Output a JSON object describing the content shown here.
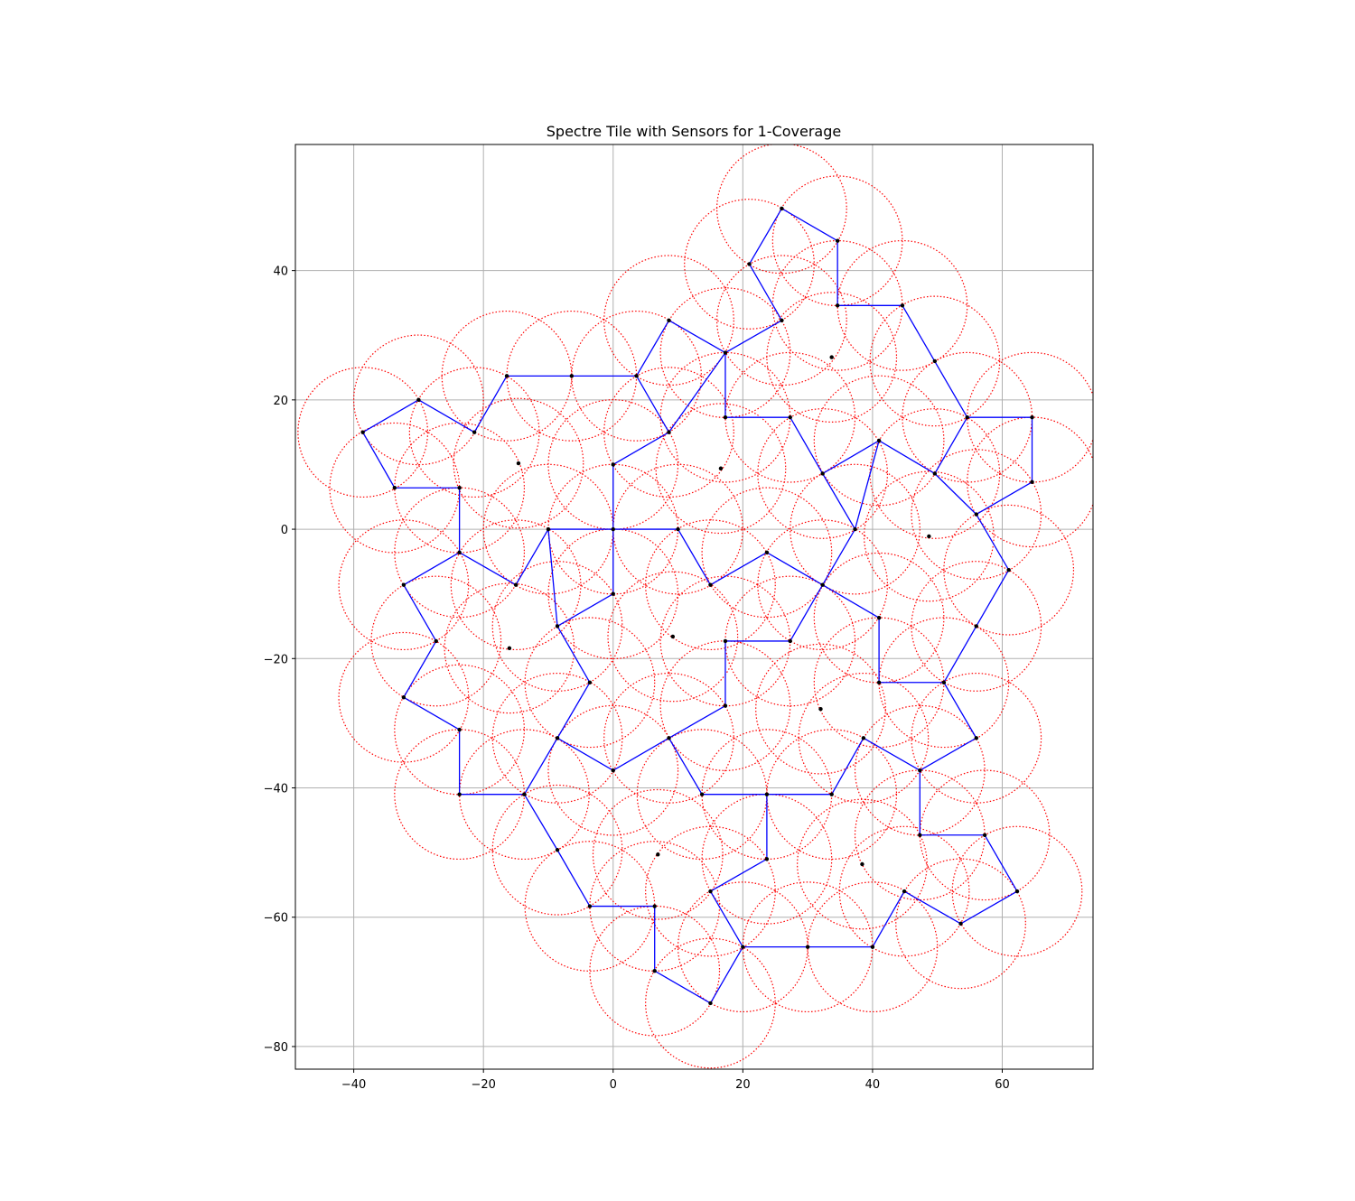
{
  "chart_data": {
    "type": "scatter",
    "title": "Spectre Tile with Sensors for 1-Coverage",
    "xlabel": "",
    "ylabel": "",
    "xlim": [
      -49,
      74
    ],
    "ylim": [
      -83.5,
      59.5
    ],
    "xticks": [
      -40,
      -20,
      0,
      20,
      40,
      60
    ],
    "yticks": [
      -80,
      -60,
      -40,
      -20,
      0,
      20,
      40
    ],
    "xtick_labels": [
      "−40",
      "−20",
      "0",
      "20",
      "40",
      "60"
    ],
    "ytick_labels": [
      "−80",
      "−60",
      "−40",
      "−20",
      "0",
      "20",
      "40"
    ],
    "grid": true,
    "sensor_radius": 10,
    "colors": {
      "tile_edge": "#0000ff",
      "coverage_circle": "#ff0000",
      "sensor": "#000000",
      "grid": "#b0b0b0"
    },
    "tile_edges": [
      [
        [
          -38.6,
          15.0
        ],
        [
          -30.0,
          20.0
        ]
      ],
      [
        [
          -30.0,
          20.0
        ],
        [
          -21.4,
          15.0
        ]
      ],
      [
        [
          -21.4,
          15.0
        ],
        [
          -16.4,
          23.7
        ]
      ],
      [
        [
          -16.4,
          23.7
        ],
        [
          3.6,
          23.7
        ]
      ],
      [
        [
          3.6,
          23.7
        ],
        [
          8.6,
          15.0
        ]
      ],
      [
        [
          8.6,
          15.0
        ],
        [
          0.0,
          10.0
        ]
      ],
      [
        [
          0.0,
          10.0
        ],
        [
          0.0,
          0.0
        ]
      ],
      [
        [
          0.0,
          0.0
        ],
        [
          -10.0,
          0.0
        ]
      ],
      [
        [
          -10.0,
          0.0
        ],
        [
          -15.0,
          -8.6
        ]
      ],
      [
        [
          -15.0,
          -8.6
        ],
        [
          -23.7,
          -3.6
        ]
      ],
      [
        [
          -23.7,
          -3.6
        ],
        [
          -23.7,
          6.4
        ]
      ],
      [
        [
          -23.7,
          6.4
        ],
        [
          -33.7,
          6.4
        ]
      ],
      [
        [
          -33.7,
          6.4
        ],
        [
          -38.6,
          15.0
        ]
      ],
      [
        [
          3.6,
          23.7
        ],
        [
          8.6,
          32.3
        ]
      ],
      [
        [
          8.6,
          32.3
        ],
        [
          17.3,
          27.3
        ]
      ],
      [
        [
          17.3,
          27.3
        ],
        [
          26.0,
          32.3
        ]
      ],
      [
        [
          26.0,
          32.3
        ],
        [
          21.0,
          41.0
        ]
      ],
      [
        [
          21.0,
          41.0
        ],
        [
          26.0,
          49.6
        ]
      ],
      [
        [
          26.0,
          49.6
        ],
        [
          34.6,
          44.6
        ]
      ],
      [
        [
          34.6,
          44.6
        ],
        [
          34.6,
          34.6
        ]
      ],
      [
        [
          34.6,
          34.6
        ],
        [
          44.6,
          34.6
        ]
      ],
      [
        [
          44.6,
          34.6
        ],
        [
          54.6,
          17.3
        ]
      ],
      [
        [
          54.6,
          17.3
        ],
        [
          49.6,
          8.6
        ]
      ],
      [
        [
          49.6,
          8.6
        ],
        [
          41.0,
          13.7
        ]
      ],
      [
        [
          41.0,
          13.7
        ],
        [
          32.3,
          8.6
        ]
      ],
      [
        [
          32.3,
          8.6
        ],
        [
          27.3,
          17.3
        ]
      ],
      [
        [
          27.3,
          17.3
        ],
        [
          17.3,
          17.3
        ]
      ],
      [
        [
          17.3,
          17.3
        ],
        [
          17.3,
          27.3
        ]
      ],
      [
        [
          8.6,
          15.0
        ],
        [
          17.3,
          27.3
        ]
      ],
      [
        [
          54.6,
          17.3
        ],
        [
          64.6,
          17.3
        ]
      ],
      [
        [
          64.6,
          17.3
        ],
        [
          64.6,
          7.3
        ]
      ],
      [
        [
          64.6,
          7.3
        ],
        [
          56.0,
          2.3
        ]
      ],
      [
        [
          56.0,
          2.3
        ],
        [
          61.0,
          -6.3
        ]
      ],
      [
        [
          61.0,
          -6.3
        ],
        [
          56.0,
          -15.0
        ]
      ],
      [
        [
          56.0,
          -15.0
        ],
        [
          51.0,
          -23.7
        ]
      ],
      [
        [
          51.0,
          -23.7
        ],
        [
          41.0,
          -23.7
        ]
      ],
      [
        [
          41.0,
          -23.7
        ],
        [
          41.0,
          -13.7
        ]
      ],
      [
        [
          41.0,
          -13.7
        ],
        [
          32.3,
          -8.6
        ]
      ],
      [
        [
          32.3,
          -8.6
        ],
        [
          37.3,
          0.0
        ]
      ],
      [
        [
          37.3,
          0.0
        ],
        [
          41.0,
          13.7
        ]
      ],
      [
        [
          56.0,
          2.3
        ],
        [
          49.6,
          8.6
        ]
      ],
      [
        [
          0.0,
          0.0
        ],
        [
          10.0,
          0.0
        ]
      ],
      [
        [
          10.0,
          0.0
        ],
        [
          15.0,
          -8.6
        ]
      ],
      [
        [
          15.0,
          -8.6
        ],
        [
          23.7,
          -3.6
        ]
      ],
      [
        [
          23.7,
          -3.6
        ],
        [
          32.3,
          -8.6
        ]
      ],
      [
        [
          37.3,
          0.0
        ],
        [
          32.3,
          8.6
        ]
      ],
      [
        [
          32.3,
          -8.6
        ],
        [
          27.3,
          -17.3
        ]
      ],
      [
        [
          27.3,
          -17.3
        ],
        [
          17.3,
          -17.3
        ]
      ],
      [
        [
          17.3,
          -17.3
        ],
        [
          17.3,
          -27.3
        ]
      ],
      [
        [
          17.3,
          -27.3
        ],
        [
          8.6,
          -32.3
        ]
      ],
      [
        [
          8.6,
          -32.3
        ],
        [
          0.0,
          -37.3
        ]
      ],
      [
        [
          0.0,
          -37.3
        ],
        [
          -8.6,
          -32.3
        ]
      ],
      [
        [
          -8.6,
          -32.3
        ],
        [
          -3.6,
          -23.7
        ]
      ],
      [
        [
          -3.6,
          -23.7
        ],
        [
          -8.6,
          -15.0
        ]
      ],
      [
        [
          -8.6,
          -15.0
        ],
        [
          0.0,
          -10.0
        ]
      ],
      [
        [
          0.0,
          -10.0
        ],
        [
          0.0,
          0.0
        ]
      ],
      [
        [
          -10.0,
          0.0
        ],
        [
          -8.6,
          -15.0
        ]
      ],
      [
        [
          -23.7,
          -3.6
        ],
        [
          -32.3,
          -8.6
        ]
      ],
      [
        [
          -32.3,
          -8.6
        ],
        [
          -27.3,
          -17.3
        ]
      ],
      [
        [
          -27.3,
          -17.3
        ],
        [
          -32.3,
          -26.0
        ]
      ],
      [
        [
          -32.3,
          -26.0
        ],
        [
          -23.7,
          -31.0
        ]
      ],
      [
        [
          -23.7,
          -31.0
        ],
        [
          -23.7,
          -41.0
        ]
      ],
      [
        [
          -23.7,
          -41.0
        ],
        [
          -13.7,
          -41.0
        ]
      ],
      [
        [
          -13.7,
          -41.0
        ],
        [
          -8.6,
          -32.3
        ]
      ],
      [
        [
          -13.7,
          -41.0
        ],
        [
          -8.6,
          -49.6
        ]
      ],
      [
        [
          -8.6,
          -49.6
        ],
        [
          -3.6,
          -58.3
        ]
      ],
      [
        [
          -3.6,
          -58.3
        ],
        [
          6.4,
          -58.3
        ]
      ],
      [
        [
          6.4,
          -58.3
        ],
        [
          6.4,
          -68.3
        ]
      ],
      [
        [
          6.4,
          -68.3
        ],
        [
          15.0,
          -73.3
        ]
      ],
      [
        [
          15.0,
          -73.3
        ],
        [
          20.0,
          -64.6
        ]
      ],
      [
        [
          20.0,
          -64.6
        ],
        [
          15.0,
          -56.0
        ]
      ],
      [
        [
          15.0,
          -56.0
        ],
        [
          23.7,
          -51.0
        ]
      ],
      [
        [
          23.7,
          -51.0
        ],
        [
          23.7,
          -41.0
        ]
      ],
      [
        [
          23.7,
          -41.0
        ],
        [
          13.7,
          -41.0
        ]
      ],
      [
        [
          13.7,
          -41.0
        ],
        [
          8.6,
          -32.3
        ]
      ],
      [
        [
          23.7,
          -41.0
        ],
        [
          33.7,
          -41.0
        ]
      ],
      [
        [
          33.7,
          -41.0
        ],
        [
          38.6,
          -32.3
        ]
      ],
      [
        [
          38.6,
          -32.3
        ],
        [
          47.3,
          -37.3
        ]
      ],
      [
        [
          47.3,
          -37.3
        ],
        [
          47.3,
          -47.3
        ]
      ],
      [
        [
          47.3,
          -47.3
        ],
        [
          57.3,
          -47.3
        ]
      ],
      [
        [
          57.3,
          -47.3
        ],
        [
          62.3,
          -56.0
        ]
      ],
      [
        [
          62.3,
          -56.0
        ],
        [
          53.6,
          -61.0
        ]
      ],
      [
        [
          53.6,
          -61.0
        ],
        [
          44.9,
          -56.0
        ]
      ],
      [
        [
          44.9,
          -56.0
        ],
        [
          40.0,
          -64.6
        ]
      ],
      [
        [
          40.0,
          -64.6
        ],
        [
          20.0,
          -64.6
        ]
      ],
      [
        [
          47.3,
          -37.3
        ],
        [
          56.0,
          -32.3
        ]
      ],
      [
        [
          56.0,
          -32.3
        ],
        [
          51.0,
          -23.7
        ]
      ]
    ],
    "sensors": [
      [
        -38.6,
        15.0
      ],
      [
        -30.0,
        20.0
      ],
      [
        -21.4,
        15.0
      ],
      [
        -16.4,
        23.7
      ],
      [
        -6.4,
        23.7
      ],
      [
        3.6,
        23.7
      ],
      [
        8.6,
        15.0
      ],
      [
        0.0,
        10.0
      ],
      [
        0.0,
        0.0
      ],
      [
        -10.0,
        0.0
      ],
      [
        -15.0,
        -8.6
      ],
      [
        -23.7,
        -3.6
      ],
      [
        -23.7,
        6.4
      ],
      [
        -33.7,
        6.4
      ],
      [
        -14.6,
        10.2
      ],
      [
        8.6,
        32.3
      ],
      [
        17.3,
        27.3
      ],
      [
        26.0,
        32.3
      ],
      [
        21.0,
        41.0
      ],
      [
        26.0,
        49.6
      ],
      [
        34.6,
        44.6
      ],
      [
        34.6,
        34.6
      ],
      [
        44.6,
        34.6
      ],
      [
        49.6,
        26.0
      ],
      [
        54.6,
        17.3
      ],
      [
        49.6,
        8.6
      ],
      [
        41.0,
        13.7
      ],
      [
        32.3,
        8.6
      ],
      [
        27.3,
        17.3
      ],
      [
        17.3,
        17.3
      ],
      [
        16.6,
        9.4
      ],
      [
        33.7,
        26.6
      ],
      [
        64.6,
        17.3
      ],
      [
        64.6,
        7.3
      ],
      [
        56.0,
        2.3
      ],
      [
        61.0,
        -6.3
      ],
      [
        56.0,
        -15.0
      ],
      [
        51.0,
        -23.7
      ],
      [
        41.0,
        -23.7
      ],
      [
        41.0,
        -13.7
      ],
      [
        32.3,
        -8.6
      ],
      [
        37.3,
        0.0
      ],
      [
        48.7,
        -1.1
      ],
      [
        10.0,
        0.0
      ],
      [
        15.0,
        -8.6
      ],
      [
        23.7,
        -3.6
      ],
      [
        27.3,
        -17.3
      ],
      [
        17.3,
        -17.3
      ],
      [
        17.3,
        -27.3
      ],
      [
        8.6,
        -32.3
      ],
      [
        0.0,
        -37.3
      ],
      [
        -8.6,
        -32.3
      ],
      [
        -3.6,
        -23.7
      ],
      [
        -8.6,
        -15.0
      ],
      [
        0.0,
        -10.0
      ],
      [
        9.2,
        -16.6
      ],
      [
        -16.0,
        -18.4
      ],
      [
        -32.3,
        -8.6
      ],
      [
        -27.3,
        -17.3
      ],
      [
        -32.3,
        -26.0
      ],
      [
        -23.7,
        -31.0
      ],
      [
        -23.7,
        -41.0
      ],
      [
        -13.7,
        -41.0
      ],
      [
        -8.6,
        -49.6
      ],
      [
        -3.6,
        -58.3
      ],
      [
        6.4,
        -58.3
      ],
      [
        6.4,
        -68.3
      ],
      [
        15.0,
        -73.3
      ],
      [
        20.0,
        -64.6
      ],
      [
        15.0,
        -56.0
      ],
      [
        23.7,
        -51.0
      ],
      [
        23.7,
        -41.0
      ],
      [
        13.7,
        -41.0
      ],
      [
        6.9,
        -50.3
      ],
      [
        30.0,
        -64.6
      ],
      [
        40.0,
        -64.6
      ],
      [
        33.7,
        -41.0
      ],
      [
        38.6,
        -32.3
      ],
      [
        47.3,
        -37.3
      ],
      [
        47.3,
        -47.3
      ],
      [
        57.3,
        -47.3
      ],
      [
        62.3,
        -56.0
      ],
      [
        53.6,
        -61.0
      ],
      [
        44.9,
        -56.0
      ],
      [
        56.0,
        -32.3
      ],
      [
        32.0,
        -27.8
      ],
      [
        38.4,
        -51.8
      ]
    ]
  }
}
